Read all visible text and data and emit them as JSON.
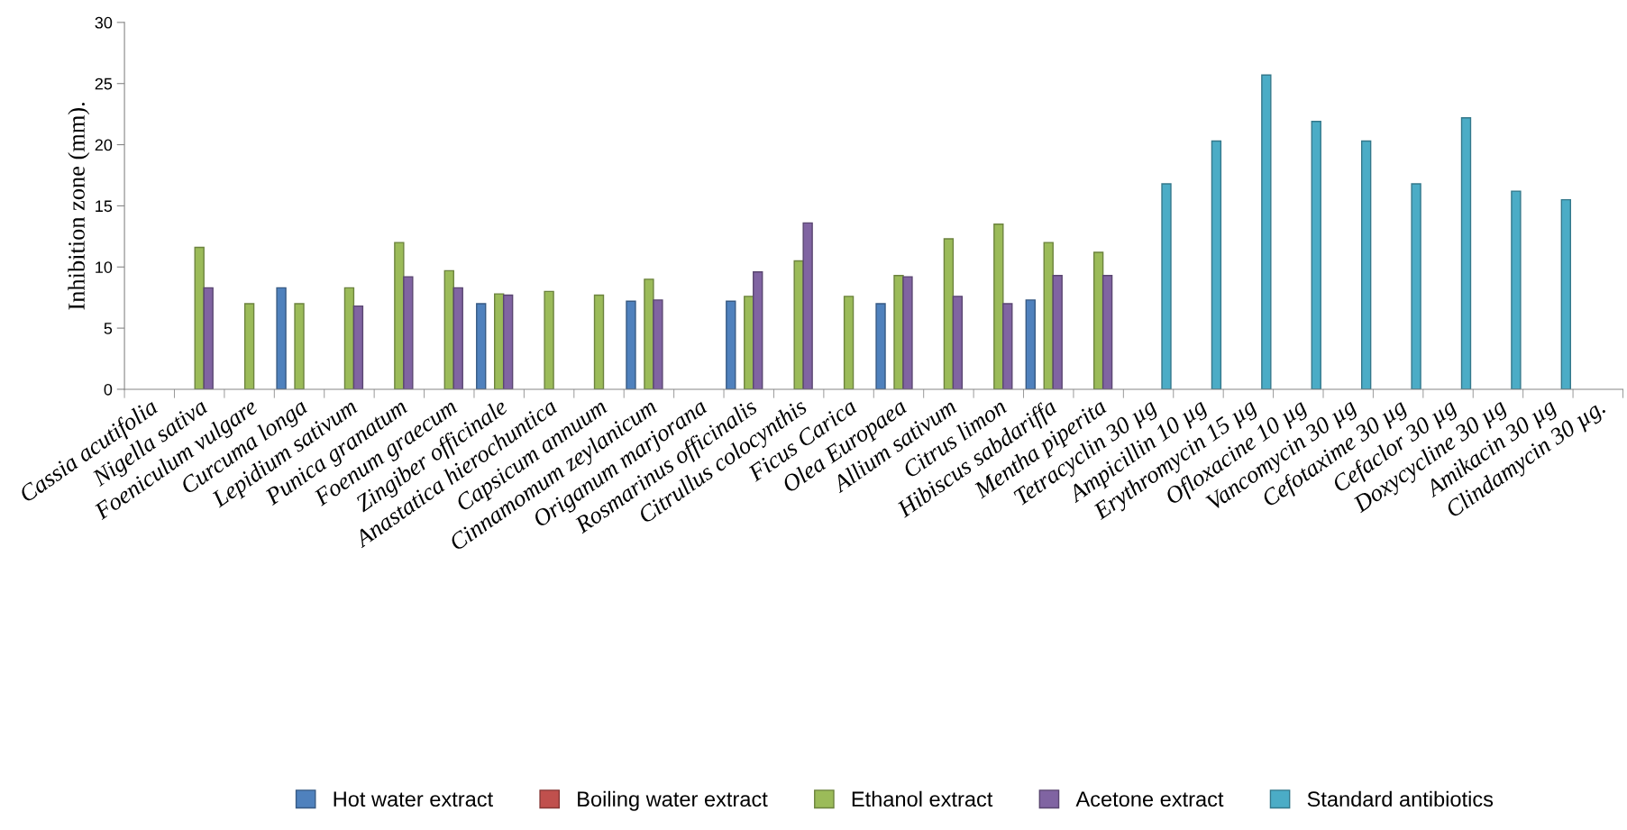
{
  "chart_data": {
    "type": "bar",
    "ylabel": "Inhibition zone (mm).",
    "categories": [
      "Cassia acutifolia",
      "Nigella sativa",
      "Foeniculum vulgare",
      "Curcuma longa",
      "Lepidium sativum",
      "Punica granatum",
      "Foenum graecum",
      "Zingiber officinale",
      "Anastatica hierochuntica",
      "Capsicum annuum",
      "Cinnamomum zeylanicum",
      "Origanum marjorana",
      "Rosmarinus officinalis",
      "Citrullus colocynthis",
      "Ficus Carica",
      "Olea Europaea",
      "Allium sativum",
      "Citrus limon",
      "Hibiscus sabdariffa",
      "Mentha piperita",
      "Tetracyclin 30 µg",
      "Ampicillin 10 µg",
      "Erythromycin 15 µg",
      "Ofloxacine 10 µg",
      "Vancomycin 30 µg",
      "Cefotaxime 30 µg",
      "Cefaclor 30 µg",
      "Doxycycline 30 µg",
      "Amikacin 30 µg",
      "Clindamycin 30 µg."
    ],
    "series": [
      {
        "name": "Hot water extract",
        "color": "#4f81bd",
        "values": [
          null,
          null,
          null,
          8.3,
          null,
          null,
          null,
          7.0,
          null,
          null,
          7.2,
          null,
          7.2,
          null,
          null,
          7.0,
          null,
          null,
          7.3,
          null,
          null,
          null,
          null,
          null,
          null,
          null,
          null,
          null,
          null,
          null
        ]
      },
      {
        "name": "Boiling water extract",
        "color": "#c0504d",
        "values": [
          null,
          null,
          null,
          null,
          null,
          null,
          null,
          null,
          null,
          null,
          null,
          null,
          null,
          null,
          null,
          null,
          null,
          null,
          null,
          null,
          null,
          null,
          null,
          null,
          null,
          null,
          null,
          null,
          null,
          null
        ]
      },
      {
        "name": "Ethanol extract",
        "color": "#9bbb59",
        "values": [
          null,
          11.6,
          7.0,
          7.0,
          8.3,
          12.0,
          9.7,
          7.8,
          8.0,
          7.7,
          9.0,
          null,
          7.6,
          10.5,
          7.6,
          9.3,
          12.3,
          13.5,
          12.0,
          11.2,
          null,
          null,
          null,
          null,
          null,
          null,
          null,
          null,
          null,
          null
        ]
      },
      {
        "name": "Acetone extract",
        "color": "#8064a2",
        "values": [
          null,
          8.3,
          null,
          null,
          6.8,
          9.2,
          8.3,
          7.7,
          null,
          null,
          7.3,
          null,
          9.6,
          13.6,
          null,
          9.2,
          7.6,
          7.0,
          9.3,
          9.3,
          null,
          null,
          null,
          null,
          null,
          null,
          null,
          null,
          null,
          null
        ]
      },
      {
        "name": "Standard antibiotics",
        "color": "#4bacc6",
        "values": [
          null,
          null,
          null,
          null,
          null,
          null,
          null,
          null,
          null,
          null,
          null,
          null,
          null,
          null,
          null,
          null,
          null,
          null,
          null,
          null,
          16.8,
          20.3,
          25.7,
          21.9,
          20.3,
          16.8,
          22.2,
          16.2,
          15.5,
          null
        ]
      }
    ],
    "ylim": [
      0,
      30
    ],
    "yticks": [
      0,
      5,
      10,
      15,
      20,
      25,
      30
    ],
    "grid": false,
    "legend": "bottom"
  }
}
